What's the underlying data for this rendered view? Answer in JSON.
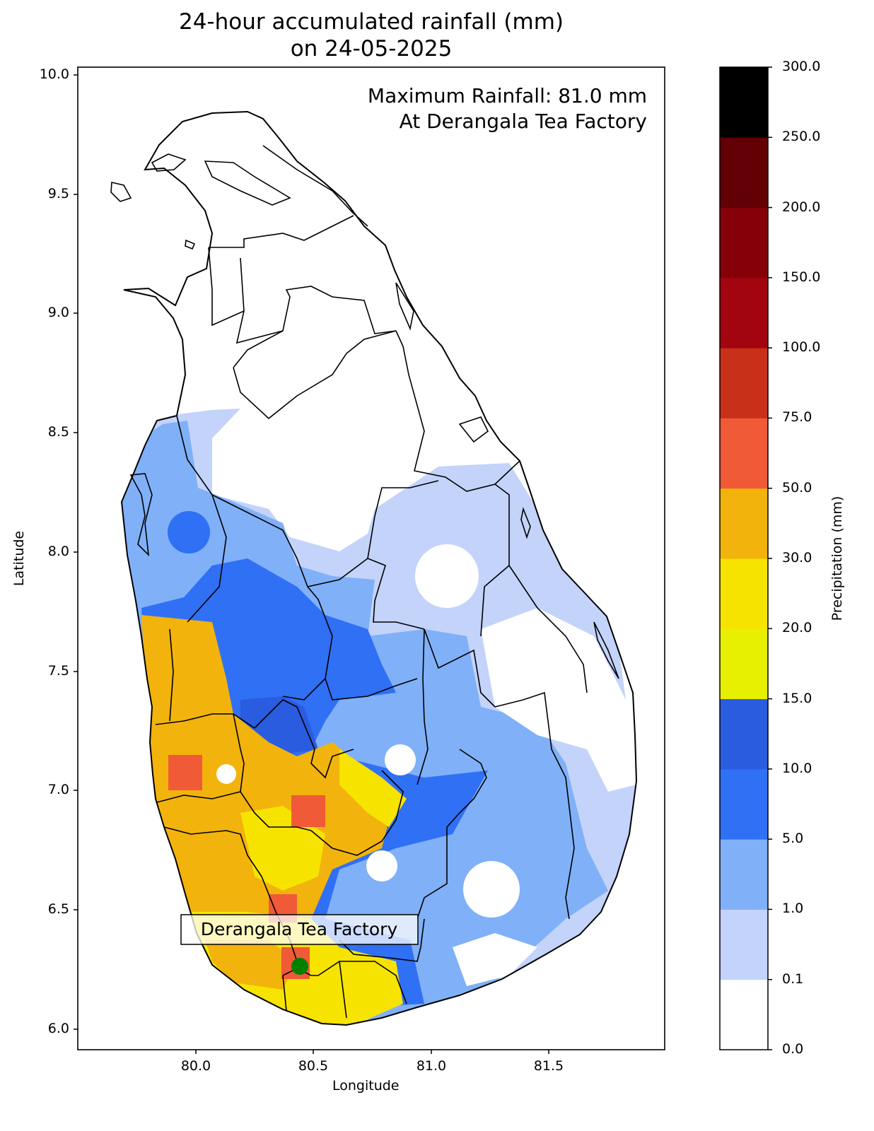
{
  "title": {
    "line1": "24-hour accumulated rainfall (mm)",
    "line2": "on 24-05-2025"
  },
  "axes": {
    "xlabel": "Longitude",
    "ylabel": "Latitude",
    "xlim": [
      79.5,
      82.0
    ],
    "ylim": [
      5.9,
      10.05
    ],
    "xticks": [
      "80.0",
      "80.5",
      "81.0",
      "81.5"
    ],
    "yticks": [
      "6.0",
      "6.5",
      "7.0",
      "7.5",
      "8.0",
      "8.5",
      "9.0",
      "9.5",
      "10.0"
    ]
  },
  "annotation": {
    "line1": "Maximum Rainfall: 81.0 mm",
    "line2": "At Derangala Tea Factory"
  },
  "station": {
    "label": "Derangala Tea Factory",
    "lon": 80.44,
    "lat": 6.26,
    "marker_color": "#008000"
  },
  "colorbar": {
    "label": "Precipitation (mm)",
    "ticks": [
      "0.0",
      "0.1",
      "1.0",
      "5.0",
      "10.0",
      "15.0",
      "20.0",
      "30.0",
      "50.0",
      "75.0",
      "100.0",
      "150.0",
      "200.0",
      "250.0",
      "300.0"
    ],
    "colors": [
      "#ffffff",
      "#c3d3fa",
      "#80b0f8",
      "#2f70f5",
      "#2a5ce0",
      "#e6f000",
      "#f7e300",
      "#f2b30d",
      "#f05a37",
      "#c93019",
      "#a20410",
      "#850008",
      "#620005",
      "#000000"
    ]
  }
}
